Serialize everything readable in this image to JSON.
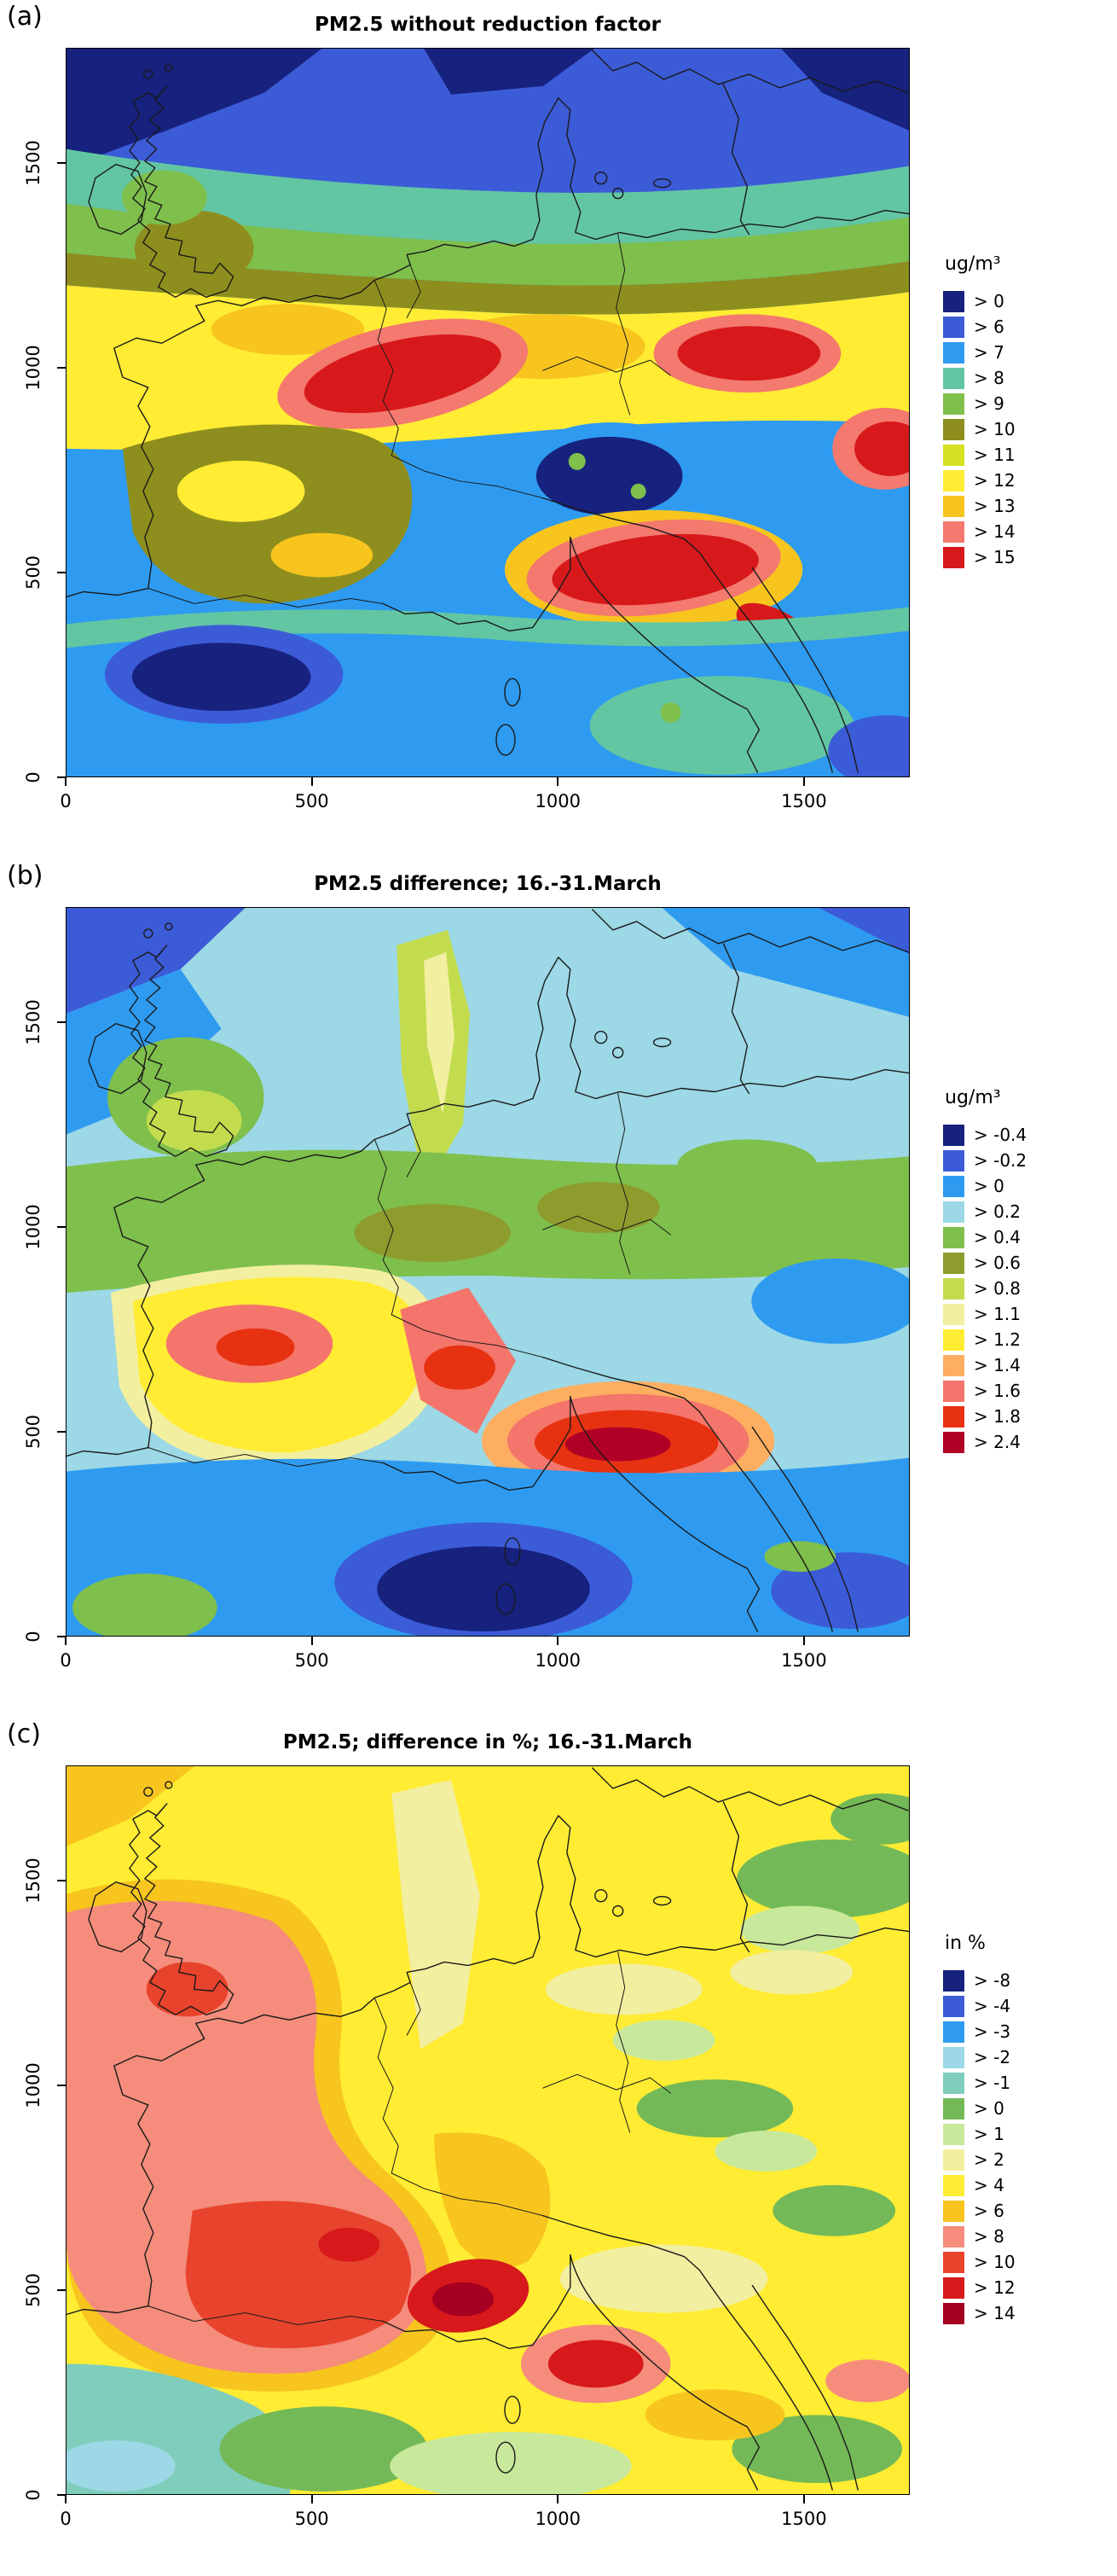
{
  "figure": {
    "panels": [
      {
        "panel_label": "(a)",
        "title": "PM2.5 without reduction factor",
        "palette_key": "a",
        "legend": {
          "title": "ug/m³",
          "labels": [
            "> 0",
            "> 6",
            "> 7",
            "> 8",
            "> 9",
            "> 10",
            "> 11",
            "> 12",
            "> 13",
            "> 14",
            "> 15"
          ]
        },
        "axes": {
          "x_ticks": [
            {
              "value": 0,
              "label": "0"
            },
            {
              "value": 500,
              "label": "500"
            },
            {
              "value": 1000,
              "label": "1000"
            },
            {
              "value": 1500,
              "label": "1500"
            }
          ],
          "x_max": 1715,
          "y_ticks": [
            {
              "value": 0,
              "label": "0"
            },
            {
              "value": 500,
              "label": "500"
            },
            {
              "value": 1000,
              "label": "1000"
            },
            {
              "value": 1500,
              "label": "1500"
            }
          ],
          "y_max": 1780
        }
      },
      {
        "panel_label": "(b)",
        "title": "PM2.5 difference; 16.-31.March",
        "palette_key": "b",
        "legend": {
          "title": "ug/m³",
          "labels": [
            "> -0.4",
            "> -0.2",
            "> 0",
            "> 0.2",
            "> 0.4",
            "> 0.6",
            "> 0.8",
            "> 1.1",
            "> 1.2",
            "> 1.4",
            "> 1.6",
            "> 1.8",
            "> 2.4"
          ]
        },
        "axes": {
          "x_ticks": [
            {
              "value": 0,
              "label": "0"
            },
            {
              "value": 500,
              "label": "500"
            },
            {
              "value": 1000,
              "label": "1000"
            },
            {
              "value": 1500,
              "label": "1500"
            }
          ],
          "x_max": 1715,
          "y_ticks": [
            {
              "value": 0,
              "label": "0"
            },
            {
              "value": 500,
              "label": "500"
            },
            {
              "value": 1000,
              "label": "1000"
            },
            {
              "value": 1500,
              "label": "1500"
            }
          ],
          "y_max": 1780
        }
      },
      {
        "panel_label": "(c)",
        "title": "PM2.5; difference in %; 16.-31.March",
        "palette_key": "c",
        "legend": {
          "title": "in %",
          "labels": [
            "> -8",
            "> -4",
            "> -3",
            "> -2",
            "> -1",
            "> 0",
            "> 1",
            "> 2",
            "> 4",
            "> 6",
            "> 8",
            "> 10",
            "> 12",
            "> 14"
          ]
        },
        "axes": {
          "x_ticks": [
            {
              "value": 0,
              "label": "0"
            },
            {
              "value": 500,
              "label": "500"
            },
            {
              "value": 1000,
              "label": "1000"
            },
            {
              "value": 1500,
              "label": "1500"
            }
          ],
          "x_max": 1715,
          "y_ticks": [
            {
              "value": 0,
              "label": "0"
            },
            {
              "value": 500,
              "label": "500"
            },
            {
              "value": 1000,
              "label": "1000"
            },
            {
              "value": 1500,
              "label": "1500"
            }
          ],
          "y_max": 1780
        }
      }
    ]
  },
  "palettes": {
    "a": [
      "#16227E",
      "#3C5BD7",
      "#2E9BF0",
      "#63C6A2",
      "#7FBF4C",
      "#8E8E1E",
      "#D7DF23",
      "#FFEC33",
      "#F7C51E",
      "#F4796E",
      "#D7191C"
    ],
    "b": [
      "#16227E",
      "#3C5BD7",
      "#2E9BF0",
      "#9CD8E5",
      "#7FBF4C",
      "#8E9C2E",
      "#C2DC4E",
      "#F2EFA0",
      "#FFEC33",
      "#FDAE61",
      "#F4756B",
      "#E73212",
      "#B10026"
    ],
    "c": [
      "#16227E",
      "#3C5BD7",
      "#2E9BF0",
      "#9CD8E5",
      "#7FCDBB",
      "#74B957",
      "#C8E89C",
      "#F2EFA0",
      "#FFEC33",
      "#F7C51E",
      "#F58C7C",
      "#E8432C",
      "#D7191C",
      "#A50021"
    ]
  },
  "chart_data": [
    {
      "type": "heatmap",
      "panel": "(a)",
      "title": "PM2.5 without reduction factor",
      "legend_title": "ug/m³",
      "legend_position": "right",
      "x_range": [
        0,
        1715
      ],
      "y_range": [
        0,
        1780
      ],
      "x_ticks": [
        0,
        500,
        1000,
        1500
      ],
      "y_ticks": [
        0,
        500,
        1000,
        1500
      ],
      "levels": [
        "> 0",
        "> 6",
        "> 7",
        "> 8",
        "> 9",
        "> 10",
        "> 11",
        "> 12",
        "> 13",
        "> 14",
        "> 15"
      ],
      "colors": [
        "#16227E",
        "#3C5BD7",
        "#2E9BF0",
        "#63C6A2",
        "#7FBF4C",
        "#8E8E1E",
        "#D7DF23",
        "#FFEC33",
        "#F7C51E",
        "#F4796E",
        "#D7191C"
      ],
      "description": "Modeled PM2.5 concentration over Europe. Maxima (>15 ug/m³, red) over the Po Valley, central Germany and eastern/SE Europe; minima (<6, dark navy) over the northern Atlantic/Baltic, the Alps and sea areas at the bottom; broad yellow/olive band (10-13 ug/m³) across France and central Europe; blue ocean band along the top and bottom of the domain."
    },
    {
      "type": "heatmap",
      "panel": "(b)",
      "title": "PM2.5 difference; 16.-31.March",
      "legend_title": "ug/m³",
      "legend_position": "right",
      "x_range": [
        0,
        1715
      ],
      "y_range": [
        0,
        1780
      ],
      "x_ticks": [
        0,
        500,
        1000,
        1500
      ],
      "y_ticks": [
        0,
        500,
        1000,
        1500
      ],
      "levels": [
        "> -0.4",
        "> -0.2",
        "> 0",
        "> 0.2",
        "> 0.4",
        "> 0.6",
        "> 0.8",
        "> 1.1",
        "> 1.2",
        "> 1.4",
        "> 1.6",
        "> 1.8",
        "> 2.4"
      ],
      "colors": [
        "#16227E",
        "#3C5BD7",
        "#2E9BF0",
        "#9CD8E5",
        "#7FBF4C",
        "#8E9C2E",
        "#C2DC4E",
        "#F2EFA0",
        "#FFEC33",
        "#FDAE61",
        "#F4756B",
        "#E73212",
        "#B10026"
      ],
      "description": "PM2.5 absolute difference for 16.-31.March. Largest positive differences (>1.8-2.4 ug/m³, red) over the Po Valley/Alpine south side and western France; yellow (>1.2) over France; green (0.4-0.8) over UK and central Europe; pale cyan to blue (around 0 to negative) over the north and over the Mediterranean at the bottom, with a dark navy minimum (< -0.2) bottom-centre."
    },
    {
      "type": "heatmap",
      "panel": "(c)",
      "title": "PM2.5; difference in %; 16.-31.March",
      "legend_title": "in %",
      "legend_position": "right",
      "x_range": [
        0,
        1715
      ],
      "y_range": [
        0,
        1780
      ],
      "x_ticks": [
        0,
        500,
        1000,
        1500
      ],
      "y_ticks": [
        0,
        500,
        1000,
        1500
      ],
      "levels": [
        "> -8",
        "> -4",
        "> -3",
        "> -2",
        "> -1",
        "> 0",
        "> 1",
        "> 2",
        "> 4",
        "> 6",
        "> 8",
        "> 10",
        "> 12",
        "> 14"
      ],
      "colors": [
        "#16227E",
        "#3C5BD7",
        "#2E9BF0",
        "#9CD8E5",
        "#7FCDBB",
        "#74B957",
        "#C8E89C",
        "#F2EFA0",
        "#FFEC33",
        "#F7C51E",
        "#F58C7C",
        "#E8432C",
        "#D7191C",
        "#A50021"
      ],
      "description": "PM2.5 relative difference in % for 16.-31.March. Large salmon/pink region (>8%) over Ireland, the UK and France with red cores (>12-14%) over central France and the Alpine region; yellow (4-6%) over most of central and eastern Europe; green patches (0-1%) in the east and south-east; teal/green band (negative to ~0%) along the bottom-left (Mediterranean)."
    }
  ]
}
